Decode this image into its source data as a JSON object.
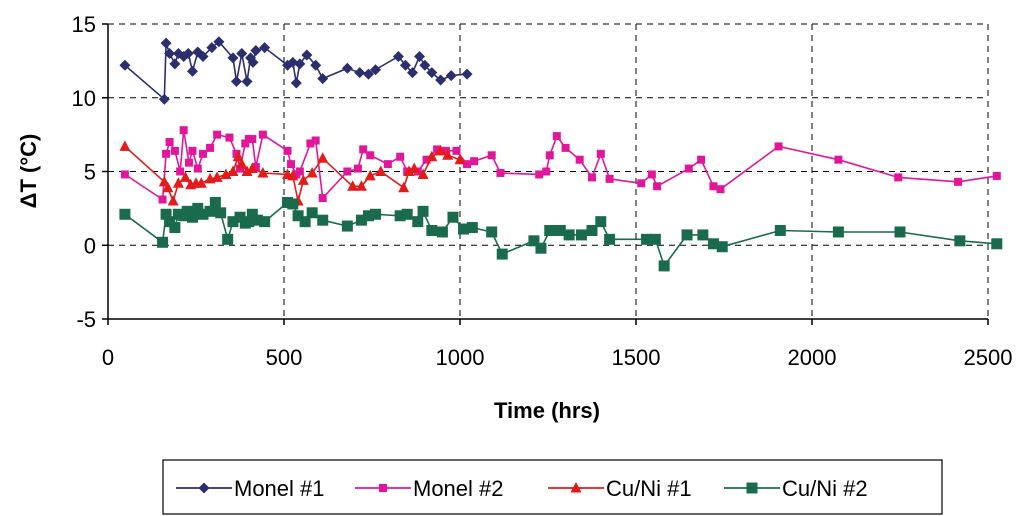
{
  "chart_data": {
    "type": "line",
    "title": "",
    "xlabel": "Time (hrs)",
    "ylabel": "ΔT (°C)",
    "xlim": [
      0,
      2500
    ],
    "ylim": [
      -5,
      15
    ],
    "xticks": [
      0,
      500,
      1000,
      1500,
      2000,
      2500
    ],
    "yticks": [
      -5,
      0,
      5,
      10,
      15
    ],
    "grid": "dashed",
    "legend_placement": "bottom",
    "series": [
      {
        "name": "Monel #1",
        "color": "#2b2f6e",
        "marker": "diamond",
        "x": [
          48,
          160,
          165,
          175,
          190,
          200,
          215,
          228,
          240,
          255,
          270,
          295,
          315,
          355,
          365,
          380,
          395,
          405,
          412,
          420,
          445,
          510,
          525,
          535,
          545,
          565,
          590,
          610,
          680,
          715,
          740,
          760,
          825,
          845,
          865,
          885,
          900,
          920,
          945,
          975,
          1020
        ],
        "y": [
          12.2,
          9.9,
          13.7,
          13.0,
          12.3,
          13.0,
          12.8,
          13.0,
          11.8,
          13.1,
          12.8,
          13.4,
          13.8,
          12.7,
          11.1,
          13.0,
          11.1,
          12.7,
          12.4,
          13.2,
          13.4,
          12.2,
          12.4,
          11.0,
          12.3,
          12.9,
          12.2,
          11.3,
          12.0,
          11.7,
          11.6,
          11.9,
          12.8,
          12.2,
          11.7,
          12.8,
          12.2,
          11.7,
          11.2,
          11.5,
          11.6
        ]
      },
      {
        "name": "Monel #2",
        "color": "#e0179a",
        "marker": "square",
        "x": [
          48,
          155,
          165,
          175,
          190,
          205,
          215,
          230,
          240,
          255,
          270,
          290,
          310,
          345,
          365,
          375,
          390,
          400,
          410,
          420,
          440,
          510,
          520,
          535,
          545,
          575,
          590,
          610,
          680,
          710,
          725,
          745,
          795,
          830,
          850,
          880,
          905,
          935,
          960,
          990,
          1020,
          1040,
          1090,
          1115,
          1225,
          1245,
          1255,
          1275,
          1300,
          1340,
          1375,
          1400,
          1425,
          1515,
          1545,
          1560,
          1650,
          1685,
          1720,
          1740,
          1905,
          2075,
          2245,
          2415,
          2525
        ],
        "y": [
          4.8,
          3.1,
          6.2,
          7.0,
          6.4,
          5.0,
          7.8,
          5.6,
          6.4,
          5.2,
          6.2,
          6.6,
          7.5,
          7.3,
          6.2,
          5.2,
          6.9,
          7.2,
          7.2,
          5.3,
          7.5,
          6.4,
          5.5,
          4.8,
          5.0,
          6.9,
          7.1,
          3.2,
          5.0,
          5.2,
          6.5,
          6.1,
          5.5,
          6.0,
          5.0,
          5.0,
          5.8,
          6.5,
          6.4,
          6.4,
          5.5,
          5.7,
          6.1,
          4.9,
          4.8,
          5.0,
          6.1,
          7.4,
          6.6,
          5.8,
          4.6,
          6.2,
          4.5,
          4.2,
          4.8,
          4.0,
          5.2,
          5.8,
          4.0,
          3.8,
          6.7,
          5.8,
          4.6,
          4.3,
          4.7
        ]
      },
      {
        "name": "Cu/Ni #1",
        "color": "#e51a1a",
        "marker": "triangle",
        "x": [
          48,
          160,
          170,
          185,
          200,
          220,
          235,
          250,
          265,
          290,
          310,
          335,
          355,
          370,
          380,
          395,
          410,
          440,
          510,
          525,
          540,
          555,
          580,
          610,
          695,
          720,
          745,
          775,
          840,
          855,
          870,
          895,
          920,
          945,
          965,
          1000
        ],
        "y": [
          6.7,
          4.3,
          3.9,
          3.0,
          4.2,
          4.6,
          4.1,
          4.2,
          4.2,
          4.5,
          4.6,
          4.8,
          5.0,
          6.0,
          5.5,
          5.0,
          5.2,
          4.9,
          4.8,
          4.7,
          3.0,
          4.4,
          4.9,
          5.9,
          4.0,
          4.0,
          4.7,
          5.0,
          3.9,
          5.0,
          5.2,
          4.8,
          6.0,
          6.4,
          6.1,
          5.8
        ]
      },
      {
        "name": "Cu/Ni #2",
        "color": "#1a6b4e",
        "marker": "square",
        "x": [
          48,
          155,
          165,
          175,
          190,
          200,
          215,
          225,
          240,
          255,
          270,
          290,
          305,
          320,
          340,
          355,
          375,
          390,
          400,
          410,
          425,
          445,
          510,
          525,
          540,
          560,
          580,
          610,
          680,
          720,
          740,
          760,
          830,
          850,
          880,
          895,
          920,
          950,
          980,
          1010,
          1035,
          1090,
          1120,
          1210,
          1230,
          1255,
          1285,
          1310,
          1345,
          1375,
          1400,
          1425,
          1530,
          1555,
          1580,
          1645,
          1690,
          1720,
          1745,
          1910,
          2075,
          2250,
          2420,
          2525
        ],
        "y": [
          2.1,
          0.2,
          2.1,
          1.6,
          1.2,
          2.1,
          2.0,
          2.3,
          1.9,
          2.5,
          2.1,
          2.3,
          2.9,
          2.2,
          0.4,
          1.6,
          1.9,
          1.5,
          1.6,
          2.1,
          1.7,
          1.6,
          2.9,
          2.8,
          2.0,
          1.6,
          2.2,
          1.7,
          1.3,
          1.7,
          2.0,
          2.1,
          2.0,
          2.1,
          1.6,
          2.3,
          1.0,
          0.9,
          1.9,
          1.1,
          1.2,
          0.9,
          -0.6,
          0.3,
          -0.2,
          1.0,
          1.0,
          0.7,
          0.7,
          1.0,
          1.6,
          0.4,
          0.4,
          0.4,
          -1.4,
          0.7,
          0.7,
          0.1,
          -0.1,
          1.0,
          0.9,
          0.9,
          0.3,
          0.1
        ]
      }
    ]
  }
}
